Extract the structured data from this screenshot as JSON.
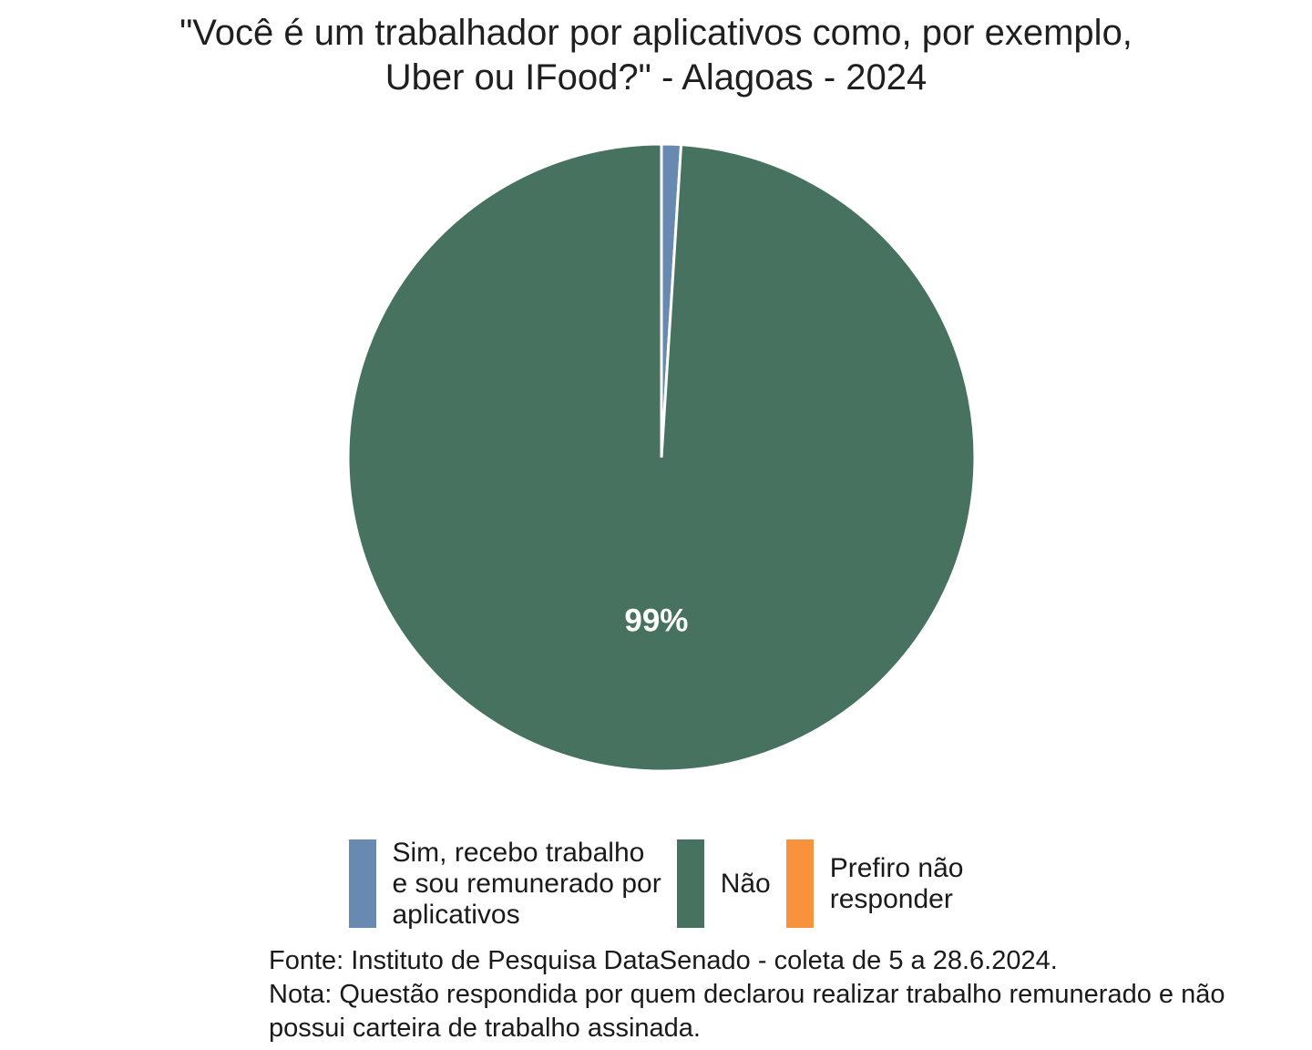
{
  "title": {
    "lines": [
      "\"Você é um trabalhador por aplicativos como, por exemplo,",
      "Uber ou IFood?\" - Alagoas - 2024"
    ]
  },
  "caption": {
    "lines": [
      "Fonte: Instituto de Pesquisa DataSenado - coleta de 5 a 28.6.2024.",
      "Nota: Questão respondida por quem declarou realizar trabalho remunerado e não",
      "possui carteira de trabalho assinada."
    ]
  },
  "chart_data": {
    "type": "pie",
    "title": "\"Você é um trabalhador por aplicativos como, por exemplo, Uber ou IFood?\" - Alagoas - 2024",
    "value_unit": "%",
    "start_angle_deg": 0,
    "direction": "clockwise",
    "slice_border_color": "#ffffff",
    "slice_border_width": 3,
    "label_color": "#ffffff",
    "label_radius_factor": 0.52,
    "legend_position": "bottom",
    "background": "#ffffff",
    "slices": [
      {
        "name": "Sim, recebo trabalho e sou remunerado por aplicativos",
        "legend_label": "Sim, recebo trabalho\ne sou remunerado por\naplicativos",
        "value": 1,
        "color": "#6889b0",
        "label": ""
      },
      {
        "name": "Não",
        "legend_label": "Não",
        "value": 99,
        "color": "#46725f",
        "label": "99%"
      },
      {
        "name": "Prefiro não responder",
        "legend_label": "Prefiro não\nresponder",
        "value": 0,
        "color": "#f8923d",
        "label": ""
      }
    ],
    "source_note": "Fonte: Instituto de Pesquisa DataSenado - coleta de 5 a 28.6.2024.",
    "note": "Nota: Questão respondida por quem declarou realizar trabalho remunerado e não possui carteira de trabalho assinada."
  }
}
